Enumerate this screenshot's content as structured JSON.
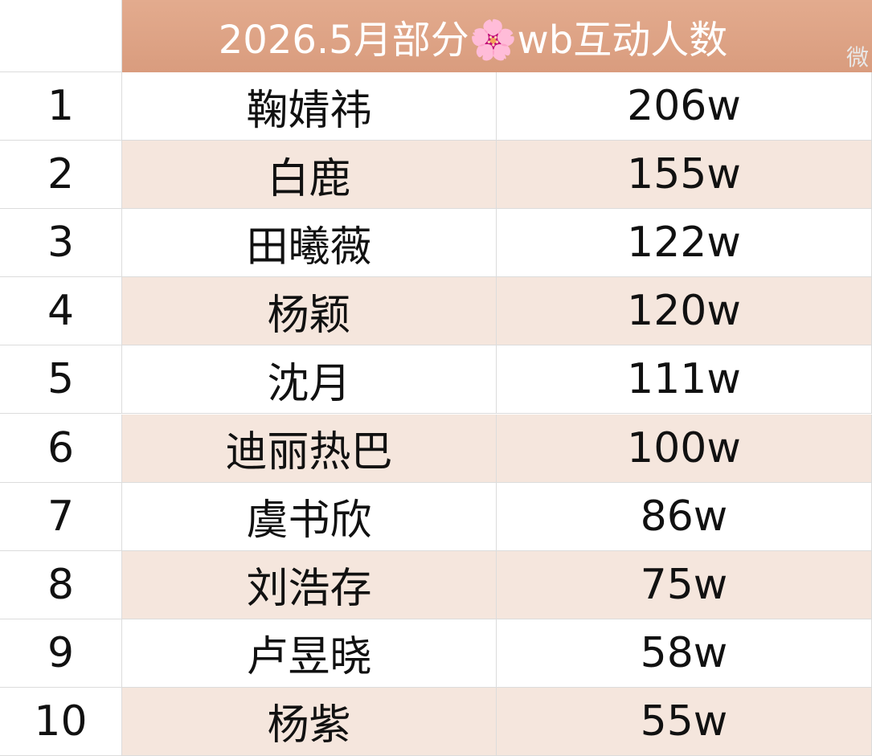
{
  "header": {
    "title": "2026.5月部分🌸wb互动人数",
    "watermark": "微"
  },
  "table": {
    "rows": [
      [
        1,
        "鞠婧祎",
        "206w"
      ],
      [
        2,
        "白鹿",
        "155w"
      ],
      [
        3,
        "田曦薇",
        "122w"
      ],
      [
        4,
        "杨颖",
        "120w"
      ],
      [
        5,
        "沈月",
        "111w"
      ],
      [
        6,
        "迪丽热巴",
        "100w"
      ],
      [
        7,
        "虞书欣",
        "86w"
      ],
      [
        8,
        "刘浩存",
        "75w"
      ],
      [
        9,
        "卢昱晓",
        "58w"
      ],
      [
        10,
        "杨紫",
        "55w"
      ]
    ]
  }
}
